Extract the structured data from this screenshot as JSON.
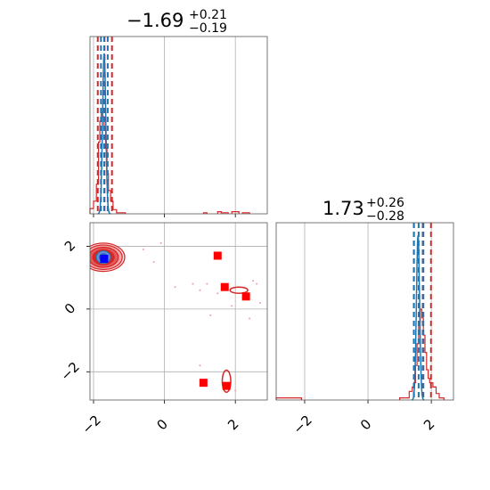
{
  "chart_data": {
    "type": "corner",
    "colors": {
      "red": "#d62728",
      "blue": "#1f77b4",
      "dark_blue": "#0000ff",
      "red_marker": "#ff0000",
      "red_light": "#e9a0a0"
    },
    "parameters": [
      {
        "title": {
          "main": "−1.69",
          "upper": "+0.21",
          "lower": "−0.19"
        },
        "median": -1.69,
        "q_low": -1.88,
        "q_high": -1.48,
        "blue_median": -1.7,
        "blue_q_low": -1.79,
        "blue_q_high": -1.6
      },
      {
        "title": {
          "main": "1.73",
          "upper": "+0.26",
          "lower": "−0.28"
        },
        "median": 1.73,
        "q_low": 1.45,
        "q_high": 1.99,
        "blue_median": 1.6,
        "blue_q_low": 1.45,
        "blue_q_high": 1.75
      }
    ],
    "x_range": [
      -2.1,
      2.9
    ],
    "y_range": [
      -2.9,
      2.75
    ],
    "x2_range": [
      -2.9,
      2.7
    ],
    "x_ticks": [
      {
        "value": -2,
        "label": "−2"
      },
      {
        "value": 0,
        "label": "0"
      },
      {
        "value": 2,
        "label": "2"
      }
    ],
    "y_ticks": [
      {
        "value": -2,
        "label": "−2"
      },
      {
        "value": 0,
        "label": "0"
      },
      {
        "value": 2,
        "label": "2"
      }
    ],
    "hist1_red": {
      "bins": [
        [
          -2.1,
          -2.0,
          5
        ],
        [
          -2.0,
          -1.92,
          12
        ],
        [
          -1.92,
          -1.86,
          28
        ],
        [
          -1.86,
          -1.82,
          68
        ],
        [
          -1.82,
          -1.78,
          88
        ],
        [
          -1.78,
          -1.74,
          96
        ],
        [
          -1.74,
          -1.7,
          92
        ],
        [
          -1.7,
          -1.66,
          82
        ],
        [
          -1.66,
          -1.62,
          62
        ],
        [
          -1.62,
          -1.58,
          38
        ],
        [
          -1.58,
          -1.52,
          22
        ],
        [
          -1.52,
          -1.45,
          12
        ],
        [
          -1.45,
          -1.35,
          4
        ],
        [
          -1.35,
          -1.1,
          1
        ],
        [
          1.1,
          1.2,
          1
        ],
        [
          1.5,
          1.6,
          2
        ],
        [
          1.6,
          1.8,
          1
        ],
        [
          1.9,
          2.1,
          2
        ],
        [
          2.2,
          2.4,
          1
        ]
      ],
      "ymax": 168
    },
    "hist1_blue": {
      "peak_x": -1.7,
      "sigma": 0.045,
      "peak_height": 152
    },
    "hist2_red": {
      "bins": [
        [
          -2.9,
          -2.4,
          1
        ],
        [
          -2.4,
          -2.1,
          1
        ],
        [
          1.0,
          1.3,
          1
        ],
        [
          1.3,
          1.4,
          4
        ],
        [
          1.4,
          1.45,
          6
        ],
        [
          1.45,
          1.5,
          8
        ],
        [
          1.5,
          1.55,
          16
        ],
        [
          1.55,
          1.6,
          26
        ],
        [
          1.6,
          1.65,
          36
        ],
        [
          1.65,
          1.7,
          42
        ],
        [
          1.7,
          1.75,
          38
        ],
        [
          1.75,
          1.8,
          30
        ],
        [
          1.8,
          1.85,
          22
        ],
        [
          1.85,
          1.9,
          14
        ],
        [
          1.9,
          1.95,
          10
        ],
        [
          1.95,
          2.05,
          8
        ],
        [
          2.05,
          2.15,
          6
        ],
        [
          2.15,
          2.25,
          3
        ],
        [
          2.25,
          2.4,
          1
        ]
      ],
      "ymax": 82
    },
    "hist2_blue": {
      "peak_x": 1.58,
      "sigma": 0.05,
      "peak_height": 76
    },
    "scatter_red_markers": [
      {
        "x": 1.5,
        "y": 1.7
      },
      {
        "x": 1.7,
        "y": 0.7
      },
      {
        "x": 2.3,
        "y": 0.4
      },
      {
        "x": 1.1,
        "y": -2.35
      },
      {
        "x": 1.75,
        "y": -2.45
      }
    ],
    "scatter_blue_marker": {
      "x": -1.7,
      "y": 1.6
    },
    "contour_main": {
      "cx": -1.72,
      "cy": 1.65,
      "radii": [
        [
          0.6,
          0.45
        ],
        [
          0.53,
          0.39
        ],
        [
          0.42,
          0.32
        ],
        [
          0.3,
          0.24
        ]
      ],
      "blue_radii": [
        [
          0.2,
          0.2
        ],
        [
          0.12,
          0.12
        ]
      ]
    },
    "contour_small": [
      {
        "cx": 2.1,
        "cy": 0.6,
        "rx": 0.25,
        "ry": 0.1
      },
      {
        "cx": 1.75,
        "cy": -2.3,
        "rx": 0.12,
        "ry": 0.35
      }
    ],
    "faint_points": [
      {
        "x": -0.1,
        "y": 2.1
      },
      {
        "x": -0.3,
        "y": 1.5
      },
      {
        "x": 1.0,
        "y": 0.6
      },
      {
        "x": 1.2,
        "y": 0.8
      },
      {
        "x": 1.5,
        "y": 0.5
      },
      {
        "x": 2.5,
        "y": 0.9
      },
      {
        "x": 2.7,
        "y": 0.2
      },
      {
        "x": 1.3,
        "y": -0.2
      },
      {
        "x": 2.4,
        "y": -0.3
      },
      {
        "x": 0.3,
        "y": 0.7
      },
      {
        "x": 1.9,
        "y": 0.1
      },
      {
        "x": 2.6,
        "y": 0.8
      },
      {
        "x": 1.0,
        "y": -1.8
      },
      {
        "x": 2.0,
        "y": -2.6
      },
      {
        "x": -0.6,
        "y": 1.9
      },
      {
        "x": 0.8,
        "y": 0.8
      }
    ]
  }
}
